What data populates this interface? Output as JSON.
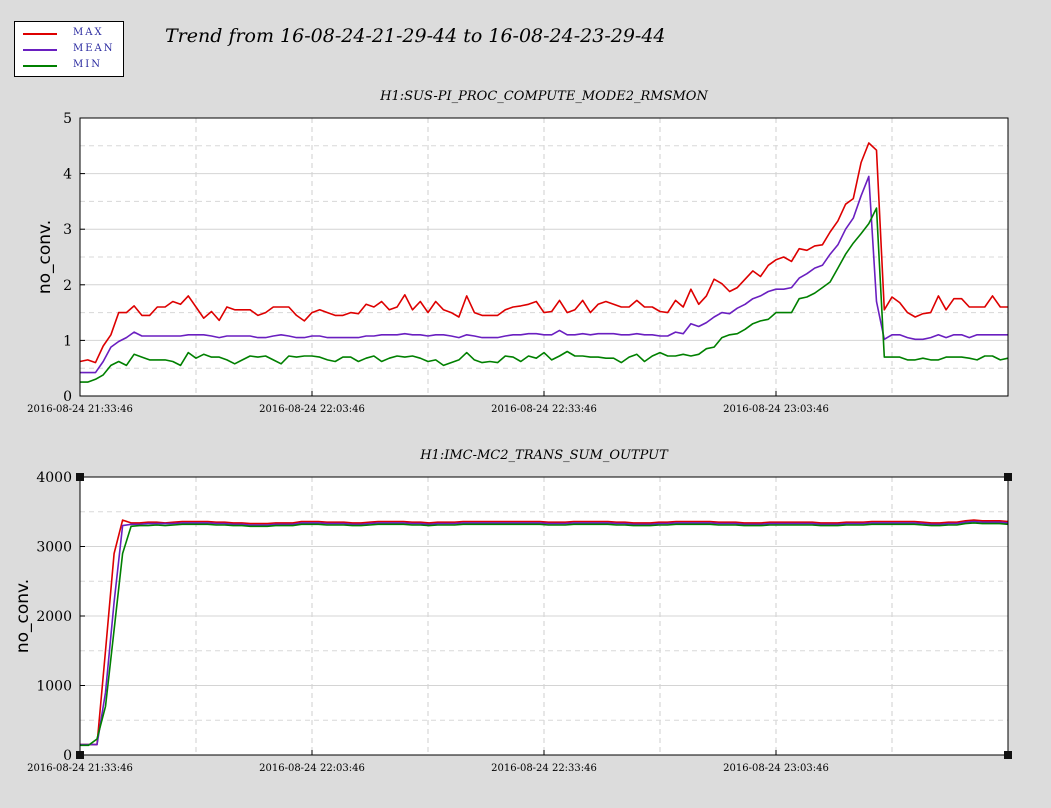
{
  "header": {
    "title": "Trend from 16-08-24-21-29-44 to 16-08-24-23-29-44"
  },
  "legend": {
    "items": [
      {
        "label": "MAX",
        "color": "#dd0000"
      },
      {
        "label": "MEAN",
        "color": "#6a1fc0"
      },
      {
        "label": "MIN",
        "color": "#008000"
      }
    ]
  },
  "chart_data": [
    {
      "type": "line",
      "title": "H1:SUS-PI_PROC_COMPUTE_MODE2_RMSMON",
      "xlabel": "",
      "ylabel": "no_conv.",
      "ylim": [
        0,
        5
      ],
      "yticks": [
        "0",
        "1",
        "2",
        "3",
        "4",
        "5"
      ],
      "xticks": [
        "2016-08-24 21:33:46",
        "2016-08-24 22:03:46",
        "2016-08-24 22:33:46",
        "2016-08-24 23:03:46"
      ],
      "x_span_minutes": [
        0,
        120
      ],
      "grid": true,
      "series": [
        {
          "name": "MAX",
          "color": "#dd0000",
          "values": [
            0.62,
            0.65,
            0.6,
            0.9,
            1.1,
            1.5,
            1.5,
            1.62,
            1.45,
            1.45,
            1.6,
            1.6,
            1.7,
            1.65,
            1.8,
            1.6,
            1.4,
            1.52,
            1.36,
            1.6,
            1.55,
            1.55,
            1.55,
            1.45,
            1.5,
            1.6,
            1.6,
            1.6,
            1.45,
            1.35,
            1.5,
            1.55,
            1.5,
            1.45,
            1.45,
            1.5,
            1.48,
            1.65,
            1.6,
            1.7,
            1.55,
            1.6,
            1.82,
            1.55,
            1.7,
            1.5,
            1.7,
            1.55,
            1.5,
            1.42,
            1.8,
            1.5,
            1.45,
            1.45,
            1.45,
            1.55,
            1.6,
            1.62,
            1.65,
            1.7,
            1.5,
            1.52,
            1.72,
            1.5,
            1.55,
            1.72,
            1.5,
            1.65,
            1.7,
            1.65,
            1.6,
            1.6,
            1.72,
            1.6,
            1.6,
            1.52,
            1.5,
            1.72,
            1.6,
            1.92,
            1.65,
            1.8,
            2.1,
            2.02,
            1.88,
            1.95,
            2.1,
            2.25,
            2.15,
            2.35,
            2.45,
            2.5,
            2.42,
            2.65,
            2.62,
            2.7,
            2.72,
            2.95,
            3.15,
            3.45,
            3.55,
            4.2,
            4.55,
            4.42,
            1.55,
            1.78,
            1.68,
            1.5,
            1.42,
            1.48,
            1.5,
            1.8,
            1.55,
            1.75,
            1.75,
            1.6,
            1.6,
            1.6,
            1.8,
            1.6,
            1.6
          ]
        },
        {
          "name": "MEAN",
          "color": "#6a1fc0",
          "values": [
            0.42,
            0.42,
            0.42,
            0.62,
            0.88,
            0.98,
            1.05,
            1.15,
            1.08,
            1.08,
            1.08,
            1.08,
            1.08,
            1.08,
            1.1,
            1.1,
            1.1,
            1.08,
            1.05,
            1.08,
            1.08,
            1.08,
            1.08,
            1.05,
            1.05,
            1.08,
            1.1,
            1.08,
            1.05,
            1.05,
            1.08,
            1.08,
            1.05,
            1.05,
            1.05,
            1.05,
            1.05,
            1.08,
            1.08,
            1.1,
            1.1,
            1.1,
            1.12,
            1.1,
            1.1,
            1.08,
            1.1,
            1.1,
            1.08,
            1.05,
            1.1,
            1.08,
            1.05,
            1.05,
            1.05,
            1.08,
            1.1,
            1.1,
            1.12,
            1.12,
            1.1,
            1.1,
            1.18,
            1.1,
            1.1,
            1.12,
            1.1,
            1.12,
            1.12,
            1.12,
            1.1,
            1.1,
            1.12,
            1.1,
            1.1,
            1.08,
            1.08,
            1.15,
            1.12,
            1.3,
            1.25,
            1.32,
            1.42,
            1.5,
            1.48,
            1.58,
            1.65,
            1.75,
            1.8,
            1.88,
            1.92,
            1.92,
            1.95,
            2.12,
            2.2,
            2.3,
            2.35,
            2.55,
            2.72,
            3.0,
            3.2,
            3.6,
            3.95,
            1.7,
            1.02,
            1.1,
            1.1,
            1.05,
            1.02,
            1.02,
            1.05,
            1.1,
            1.05,
            1.1,
            1.1,
            1.05,
            1.1,
            1.1,
            1.1,
            1.1,
            1.1
          ]
        },
        {
          "name": "MIN",
          "color": "#008000",
          "values": [
            0.25,
            0.25,
            0.3,
            0.38,
            0.55,
            0.62,
            0.55,
            0.75,
            0.7,
            0.65,
            0.65,
            0.65,
            0.62,
            0.55,
            0.78,
            0.68,
            0.75,
            0.7,
            0.7,
            0.65,
            0.58,
            0.65,
            0.72,
            0.7,
            0.72,
            0.65,
            0.58,
            0.72,
            0.7,
            0.72,
            0.72,
            0.7,
            0.65,
            0.62,
            0.7,
            0.7,
            0.62,
            0.68,
            0.72,
            0.62,
            0.68,
            0.72,
            0.7,
            0.72,
            0.68,
            0.62,
            0.65,
            0.55,
            0.6,
            0.65,
            0.78,
            0.65,
            0.6,
            0.62,
            0.6,
            0.72,
            0.7,
            0.62,
            0.72,
            0.68,
            0.78,
            0.65,
            0.72,
            0.8,
            0.72,
            0.72,
            0.7,
            0.7,
            0.68,
            0.68,
            0.6,
            0.7,
            0.75,
            0.62,
            0.72,
            0.78,
            0.72,
            0.72,
            0.75,
            0.72,
            0.75,
            0.85,
            0.88,
            1.05,
            1.1,
            1.12,
            1.2,
            1.3,
            1.35,
            1.38,
            1.5,
            1.5,
            1.5,
            1.75,
            1.78,
            1.85,
            1.95,
            2.05,
            2.3,
            2.55,
            2.75,
            2.92,
            3.1,
            3.38,
            0.7,
            0.7,
            0.7,
            0.65,
            0.65,
            0.68,
            0.65,
            0.65,
            0.7,
            0.7,
            0.7,
            0.68,
            0.65,
            0.72,
            0.72,
            0.65,
            0.68
          ]
        }
      ]
    },
    {
      "type": "line",
      "title": "H1:IMC-MC2_TRANS_SUM_OUTPUT",
      "xlabel": "",
      "ylabel": "no_conv.",
      "ylim": [
        0,
        4000
      ],
      "yticks": [
        "0",
        "1000",
        "2000",
        "3000",
        "4000"
      ],
      "xticks": [
        "2016-08-24 21:33:46",
        "2016-08-24 22:03:46",
        "2016-08-24 22:33:46",
        "2016-08-24 23:03:46"
      ],
      "x_span_minutes": [
        0,
        120
      ],
      "grid": true,
      "series": [
        {
          "name": "MAX",
          "color": "#dd0000",
          "values": [
            150,
            150,
            150,
            1500,
            2900,
            3380,
            3340,
            3340,
            3350,
            3350,
            3340,
            3350,
            3360,
            3360,
            3360,
            3360,
            3350,
            3350,
            3340,
            3340,
            3330,
            3330,
            3330,
            3340,
            3340,
            3340,
            3360,
            3360,
            3360,
            3350,
            3350,
            3350,
            3340,
            3340,
            3350,
            3360,
            3360,
            3360,
            3360,
            3350,
            3350,
            3340,
            3350,
            3350,
            3350,
            3360,
            3360,
            3360,
            3360,
            3360,
            3360,
            3360,
            3360,
            3360,
            3360,
            3350,
            3350,
            3350,
            3360,
            3360,
            3360,
            3360,
            3360,
            3350,
            3350,
            3340,
            3340,
            3340,
            3350,
            3350,
            3360,
            3360,
            3360,
            3360,
            3360,
            3350,
            3350,
            3350,
            3340,
            3340,
            3340,
            3350,
            3350,
            3350,
            3350,
            3350,
            3350,
            3340,
            3340,
            3340,
            3350,
            3350,
            3350,
            3360,
            3360,
            3360,
            3360,
            3360,
            3360,
            3350,
            3340,
            3340,
            3350,
            3350,
            3370,
            3380,
            3370,
            3370,
            3370,
            3360
          ]
        },
        {
          "name": "MEAN",
          "color": "#6a1fc0",
          "values": [
            150,
            150,
            150,
            900,
            2200,
            3300,
            3320,
            3320,
            3330,
            3330,
            3330,
            3330,
            3340,
            3340,
            3340,
            3340,
            3330,
            3330,
            3320,
            3320,
            3310,
            3310,
            3310,
            3320,
            3320,
            3320,
            3340,
            3340,
            3340,
            3330,
            3330,
            3330,
            3320,
            3320,
            3330,
            3340,
            3340,
            3340,
            3340,
            3330,
            3330,
            3320,
            3330,
            3330,
            3330,
            3340,
            3340,
            3340,
            3340,
            3340,
            3340,
            3340,
            3340,
            3340,
            3340,
            3330,
            3330,
            3330,
            3340,
            3340,
            3340,
            3340,
            3340,
            3330,
            3330,
            3320,
            3320,
            3320,
            3330,
            3330,
            3340,
            3340,
            3340,
            3340,
            3340,
            3330,
            3330,
            3330,
            3320,
            3320,
            3320,
            3330,
            3330,
            3330,
            3330,
            3330,
            3330,
            3320,
            3320,
            3320,
            3330,
            3330,
            3330,
            3340,
            3340,
            3340,
            3340,
            3340,
            3340,
            3330,
            3320,
            3320,
            3330,
            3330,
            3350,
            3360,
            3350,
            3350,
            3350,
            3340
          ]
        },
        {
          "name": "MIN",
          "color": "#008000",
          "values": [
            140,
            140,
            230,
            700,
            1800,
            2900,
            3290,
            3300,
            3300,
            3310,
            3300,
            3310,
            3320,
            3320,
            3320,
            3320,
            3310,
            3310,
            3300,
            3300,
            3290,
            3290,
            3290,
            3300,
            3300,
            3300,
            3320,
            3320,
            3320,
            3310,
            3310,
            3310,
            3300,
            3300,
            3310,
            3320,
            3320,
            3320,
            3320,
            3310,
            3310,
            3300,
            3310,
            3310,
            3310,
            3320,
            3320,
            3320,
            3320,
            3320,
            3320,
            3320,
            3320,
            3320,
            3320,
            3310,
            3310,
            3310,
            3320,
            3320,
            3320,
            3320,
            3320,
            3310,
            3310,
            3300,
            3300,
            3300,
            3310,
            3310,
            3320,
            3320,
            3320,
            3320,
            3320,
            3310,
            3310,
            3310,
            3300,
            3300,
            3300,
            3310,
            3310,
            3310,
            3310,
            3310,
            3310,
            3300,
            3300,
            3300,
            3310,
            3310,
            3310,
            3320,
            3320,
            3320,
            3320,
            3320,
            3320,
            3310,
            3300,
            3300,
            3310,
            3310,
            3330,
            3340,
            3330,
            3330,
            3330,
            3320
          ]
        }
      ]
    }
  ]
}
